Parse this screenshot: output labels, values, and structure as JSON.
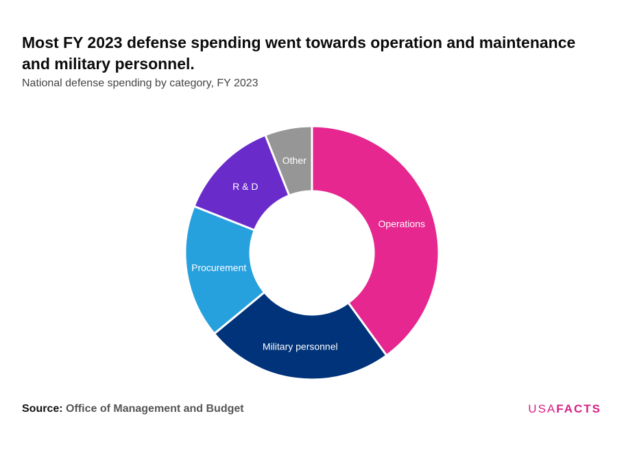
{
  "title": "Most FY 2023 defense spending went towards operation and maintenance and military personnel.",
  "subtitle": "National defense spending by category, FY 2023",
  "source": {
    "label": "Source:",
    "value": "Office of Management and Budget"
  },
  "logo": {
    "usa": "USA",
    "facts": "FACTS"
  },
  "chart_data": {
    "type": "pie",
    "donut": true,
    "legend": "none",
    "slices": [
      {
        "label": "Operations",
        "value": 40.0,
        "color": "#e5278f"
      },
      {
        "label": "Military personnel",
        "value": 24.0,
        "color": "#00337a"
      },
      {
        "label": "Procurement",
        "value": 17.0,
        "color": "#27a0de"
      },
      {
        "label": "R & D",
        "value": 13.0,
        "color": "#6a2bcb"
      },
      {
        "label": "Other",
        "value": 6.0,
        "color": "#969696"
      }
    ]
  }
}
